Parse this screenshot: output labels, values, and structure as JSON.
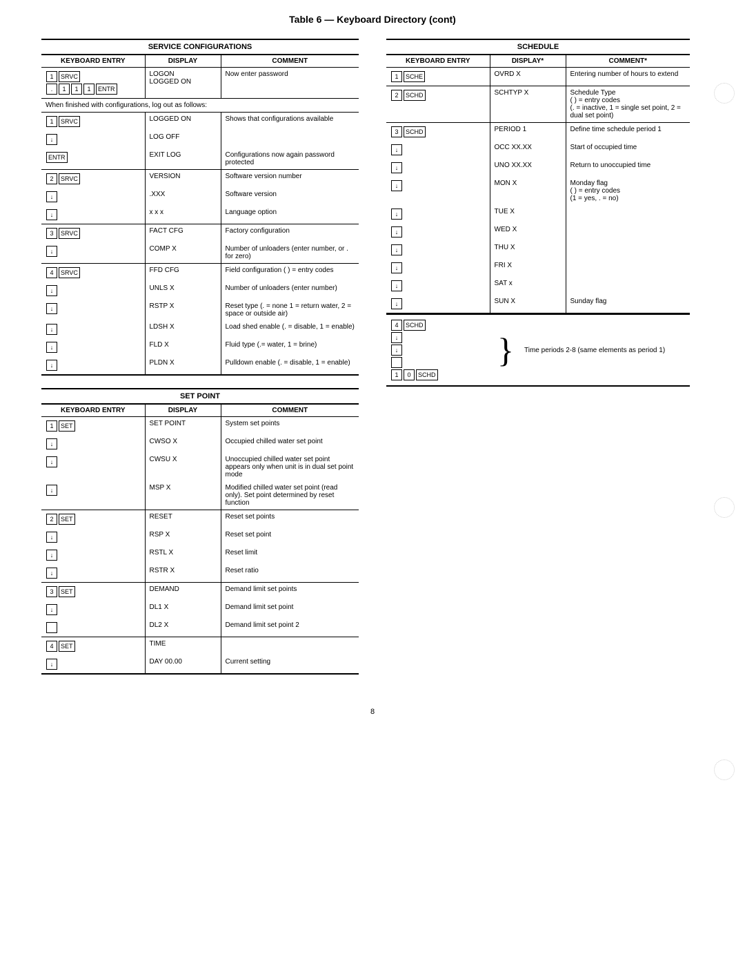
{
  "page_title": "Table 6 — Keyboard Directory (cont)",
  "page_number": "8",
  "service_config": {
    "title": "SERVICE CONFIGURATIONS",
    "headers": [
      "KEYBOARD ENTRY",
      "DISPLAY",
      "COMMENT"
    ],
    "rows": [
      {
        "keys": [
          [
            "1",
            "SRVC"
          ],
          [
            ".",
            "1",
            "1",
            "1",
            "ENTR"
          ]
        ],
        "display": "LOGON\nLOGGED ON",
        "comment": "Now enter password",
        "sep": false
      },
      {
        "note": "When finished with configurations, log out as follows:"
      },
      {
        "keys": [
          [
            "1",
            "SRVC"
          ]
        ],
        "display": "LOGGED ON",
        "comment": "Shows that configurations available",
        "sep": true
      },
      {
        "keys": [
          [
            "↓"
          ]
        ],
        "display": "LOG OFF",
        "comment": "",
        "sep": false
      },
      {
        "keys": [
          [
            "ENTR"
          ]
        ],
        "display": "EXIT   LOG",
        "comment": "Configurations now again password protected",
        "sep": false
      },
      {
        "keys": [
          [
            "2",
            "SRVC"
          ]
        ],
        "display": "VERSION",
        "comment": "Software version number",
        "sep": true
      },
      {
        "keys": [
          [
            "↓"
          ]
        ],
        "display": ".XXX",
        "comment": "Software version",
        "sep": false
      },
      {
        "keys": [
          [
            "↓"
          ]
        ],
        "display": "x x x",
        "comment": "Language option",
        "sep": false
      },
      {
        "keys": [
          [
            "3",
            "SRVC"
          ]
        ],
        "display": "FACT CFG",
        "comment": "Factory configuration",
        "sep": true
      },
      {
        "keys": [
          [
            "↓"
          ]
        ],
        "display": "COMP X",
        "comment": "Number of unloaders (enter number, or . for zero)",
        "sep": false
      },
      {
        "keys": [
          [
            "4",
            "SRVC"
          ]
        ],
        "display": "FFD CFG",
        "comment": "Field configuration ( ) = entry codes",
        "sep": true
      },
      {
        "keys": [
          [
            "↓"
          ]
        ],
        "display": "UNLS X",
        "comment": "Number of unloaders (enter number)",
        "sep": false
      },
      {
        "keys": [
          [
            "↓"
          ]
        ],
        "display": "RSTP X",
        "comment": "Reset type (. = none 1 = return water, 2 = space or outside air)",
        "sep": false
      },
      {
        "keys": [
          [
            "↓"
          ]
        ],
        "display": "LDSH X",
        "comment": "Load shed enable (. = disable, 1 = enable)",
        "sep": false
      },
      {
        "keys": [
          [
            "↓"
          ]
        ],
        "display": "FLD X",
        "comment": "Fluid type (.= water, 1 = brine)",
        "sep": false
      },
      {
        "keys": [
          [
            "↓"
          ]
        ],
        "display": "PLDN X",
        "comment": "Pulldown enable (. = disable, 1 = enable)",
        "sep": false
      }
    ]
  },
  "set_point": {
    "title": "SET POINT",
    "headers": [
      "KEYBOARD ENTRY",
      "DISPLAY",
      "COMMENT"
    ],
    "rows": [
      {
        "keys": [
          [
            "1",
            "SET"
          ]
        ],
        "display": "SET POINT",
        "comment": "System set points",
        "sep": false
      },
      {
        "keys": [
          [
            "↓"
          ]
        ],
        "display": "CWSO  X",
        "comment": "Occupied chilled water set point",
        "sep": false
      },
      {
        "keys": [
          [
            "↓"
          ]
        ],
        "display": "CWSU  X",
        "comment": "Unoccupied chilled water set point appears only when unit is in dual set point mode",
        "sep": false
      },
      {
        "keys": [
          [
            "↓"
          ]
        ],
        "display": "MSP X",
        "comment": "Modified chilled water set point (read only). Set point determined by reset function",
        "sep": false
      },
      {
        "keys": [
          [
            "2",
            "SET"
          ]
        ],
        "display": "RESET",
        "comment": "Reset set points",
        "sep": true
      },
      {
        "keys": [
          [
            "↓"
          ]
        ],
        "display": "RSP X",
        "comment": "Reset set point",
        "sep": false
      },
      {
        "keys": [
          [
            "↓"
          ]
        ],
        "display": "RSTL X",
        "comment": "Reset limit",
        "sep": false
      },
      {
        "keys": [
          [
            "↓"
          ]
        ],
        "display": "RSTR X",
        "comment": "Reset ratio",
        "sep": false
      },
      {
        "keys": [
          [
            "3",
            "SET"
          ]
        ],
        "display": "DEMAND",
        "comment": "Demand limit set points",
        "sep": true
      },
      {
        "keys": [
          [
            "↓"
          ]
        ],
        "display": "DL1 X",
        "comment": "Demand limit set point",
        "sep": false
      },
      {
        "keys": [
          [
            "□"
          ]
        ],
        "display": "DL2 X",
        "comment": "Demand limit set point 2",
        "sep": false
      },
      {
        "keys": [
          [
            "4",
            "SET"
          ]
        ],
        "display": "TIME",
        "comment": "",
        "sep": true
      },
      {
        "keys": [
          [
            "↓"
          ]
        ],
        "display": "DAY  00.00",
        "comment": "Current setting",
        "sep": false
      }
    ]
  },
  "schedule": {
    "title": "SCHEDULE",
    "headers": [
      "KEYBOARD ENTRY",
      "DISPLAY*",
      "COMMENT*"
    ],
    "rows": [
      {
        "keys": [
          [
            "1",
            "SCHE"
          ]
        ],
        "display": "OVRD X",
        "comment": "Entering number of hours to extend",
        "sep": false
      },
      {
        "keys": [
          [
            "2",
            "SCHD"
          ]
        ],
        "display": "SCHTYP X",
        "comment": "Schedule Type\n( ) = entry codes\n(. = inactive, 1 = single set point, 2 = dual set point)",
        "sep": true
      },
      {
        "keys": [
          [
            "3",
            "SCHD"
          ]
        ],
        "display": "PERIOD 1",
        "comment": "Define time schedule period 1",
        "sep": true
      },
      {
        "keys": [
          [
            "↓"
          ]
        ],
        "display": "OCC XX.XX",
        "comment": "Start of occupied time",
        "sep": false
      },
      {
        "keys": [
          [
            "↓"
          ]
        ],
        "display": "UNO XX.XX",
        "comment": "Return to unoccupied time",
        "sep": false
      },
      {
        "keys": [
          [
            "↓"
          ]
        ],
        "display": "MON X",
        "comment": "Monday flag\n( ) = entry codes\n(1 = yes, . = no)",
        "sep": false
      },
      {
        "keys": [
          [
            "↓"
          ]
        ],
        "display": "TUE X",
        "comment": "",
        "sep": false
      },
      {
        "keys": [
          [
            "↓"
          ]
        ],
        "display": "WED X",
        "comment": "",
        "sep": false
      },
      {
        "keys": [
          [
            "↓"
          ]
        ],
        "display": "THU X",
        "comment": "",
        "sep": false
      },
      {
        "keys": [
          [
            "↓"
          ]
        ],
        "display": "FRI X",
        "comment": "",
        "sep": false
      },
      {
        "keys": [
          [
            "↓"
          ]
        ],
        "display": "SAT x",
        "comment": "",
        "sep": false
      },
      {
        "keys": [
          [
            "↓"
          ]
        ],
        "display": "SUN X",
        "comment": "Sunday flag",
        "sep": false
      }
    ],
    "note": {
      "keys": [
        [
          "4",
          "SCHD"
        ],
        [
          "↓"
        ],
        [
          "↓"
        ],
        [
          "□"
        ],
        [
          "1",
          "0",
          "SCHD"
        ]
      ],
      "text": "Time periods 2-8 (same elements as period 1)"
    }
  }
}
